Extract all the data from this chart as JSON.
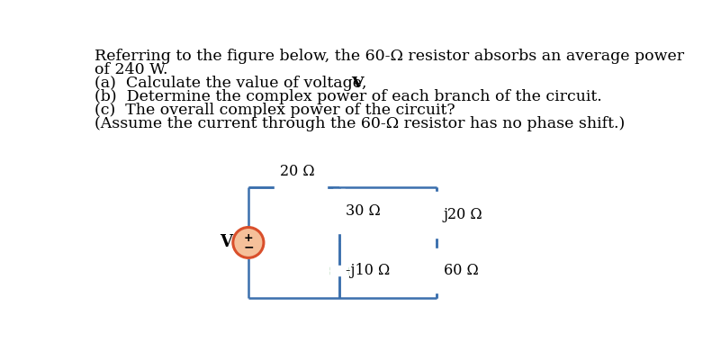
{
  "circuit_color": "#3a6fad",
  "component_color": "#2e8b3a",
  "source_fill": "#f5c09a",
  "source_edge": "#d94f2b",
  "bg_color": "#ffffff",
  "resistor_20_label": "20 Ω",
  "resistor_30_label": "30 Ω",
  "resistor_60_label": "60 Ω",
  "capacitor_label": "-j10 Ω",
  "inductor_label": "j20 Ω",
  "source_label": "V",
  "line1": "Referring to the figure below, the 60-Ω resistor absorbs an average power",
  "line2": "of 240 W.",
  "line3a": "(a)  Calculate the value of voltage, ",
  "line3b": "V",
  "line4": "(b)  Determine the complex power of each branch of the circuit.",
  "line5": "(c)  The overall complex power of the circuit?",
  "line6": "(Assume the current through the 60-Ω resistor has no phase shift.)",
  "font_size": 12.5
}
